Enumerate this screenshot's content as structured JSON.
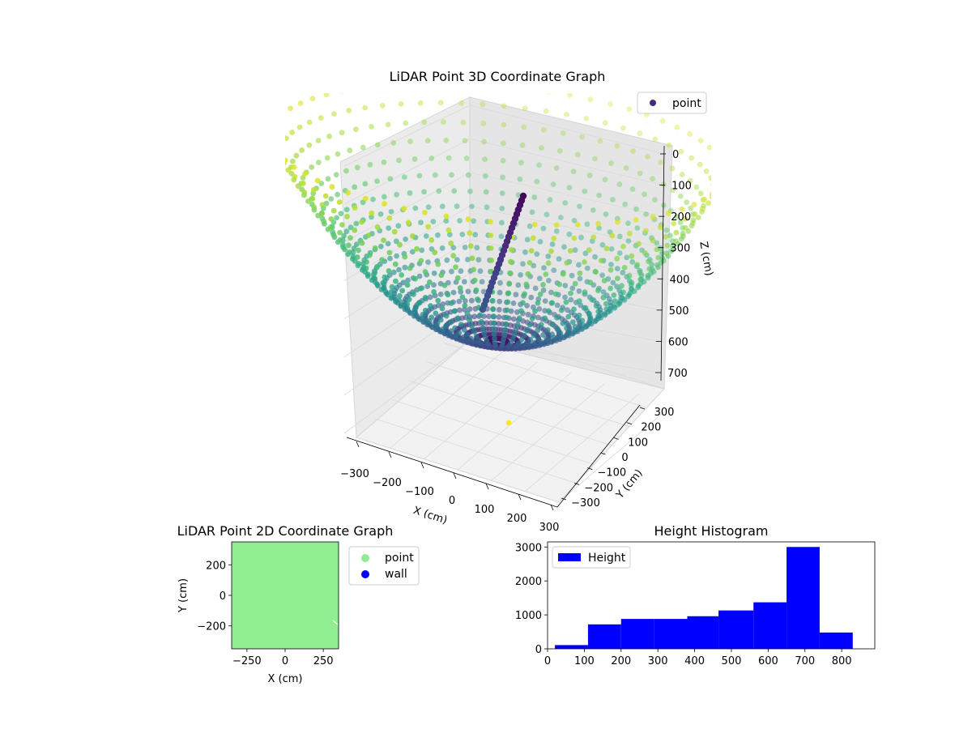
{
  "chart_data": [
    {
      "type": "scatter3d",
      "title": "LiDAR Point 3D Coordinate Graph",
      "xlabel": "X (cm)",
      "ylabel": "Y (cm)",
      "zlabel": "Z (cm)",
      "xticks": [
        -300,
        -200,
        -100,
        0,
        100,
        200,
        300
      ],
      "yticks": [
        -300,
        -200,
        -100,
        0,
        100,
        200,
        300
      ],
      "zticks": [
        0,
        100,
        200,
        300,
        400,
        500,
        600,
        700
      ],
      "xlim": [
        -350,
        350
      ],
      "ylim": [
        -350,
        350
      ],
      "zlim": [
        0,
        800
      ],
      "z_inverted": true,
      "colormap": "viridis",
      "legend": {
        "position": "top-right",
        "entries": [
          {
            "label": "point",
            "color": "#472c7a"
          }
        ]
      },
      "surface": {
        "description": "bowl-shaped point cloud: radius up to ~350 cm, depth 0 to ~830 cm",
        "radius_max": 350,
        "depth_max": 830,
        "color_by": "height"
      }
    },
    {
      "type": "scatter",
      "title": "LiDAR Point 2D Coordinate Graph",
      "xlabel": "X (cm)",
      "ylabel": "Y (cm)",
      "xticks": [
        -250,
        0,
        250
      ],
      "yticks": [
        -200,
        0,
        200
      ],
      "xlim": [
        -350,
        350
      ],
      "ylim": [
        -350,
        350
      ],
      "legend": {
        "position": "outside-right",
        "entries": [
          {
            "label": "point",
            "color": "#90ee90"
          },
          {
            "label": "wall",
            "color": "#0000ff"
          }
        ]
      },
      "series": [
        {
          "name": "point",
          "color": "#90ee90",
          "description": "dense fill over whole plotting area"
        },
        {
          "name": "wall",
          "color": "#0000ff",
          "description": "not visibly distinct"
        }
      ]
    },
    {
      "type": "bar",
      "title": "Height Histogram",
      "xlabel": "",
      "ylabel": "",
      "xticks": [
        0,
        100,
        200,
        300,
        400,
        500,
        600,
        700,
        800
      ],
      "yticks": [
        0,
        1000,
        2000,
        3000
      ],
      "xlim": [
        0,
        890
      ],
      "ylim": [
        0,
        3150
      ],
      "bar_color": "#0000ff",
      "legend": {
        "position": "top-left",
        "entries": [
          {
            "label": "Height",
            "color": "#0000ff"
          }
        ]
      },
      "bins": [
        {
          "x0": 20,
          "x1": 110,
          "value": 110
        },
        {
          "x0": 110,
          "x1": 200,
          "value": 720
        },
        {
          "x0": 200,
          "x1": 290,
          "value": 880
        },
        {
          "x0": 290,
          "x1": 380,
          "value": 880
        },
        {
          "x0": 380,
          "x1": 465,
          "value": 960
        },
        {
          "x0": 465,
          "x1": 560,
          "value": 1130
        },
        {
          "x0": 560,
          "x1": 650,
          "value": 1370
        },
        {
          "x0": 650,
          "x1": 740,
          "value": 3000
        },
        {
          "x0": 740,
          "x1": 830,
          "value": 480
        }
      ]
    }
  ]
}
